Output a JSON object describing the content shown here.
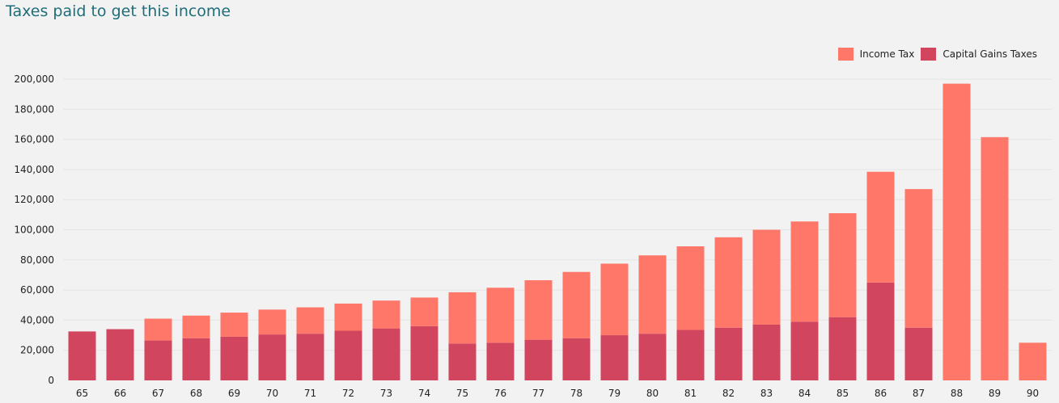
{
  "title": "Taxes paid to get this income",
  "colors": {
    "income_tax": "#ff7769",
    "capital_gains": "#d1465e",
    "grid": "#e4e4e4"
  },
  "chart_data": {
    "type": "bar",
    "stacked": true,
    "title": "Taxes paid to get this income",
    "xlabel": "",
    "ylabel": "",
    "ylim": [
      0,
      200000
    ],
    "yticks": [
      0,
      20000,
      40000,
      60000,
      80000,
      100000,
      120000,
      140000,
      160000,
      180000,
      200000
    ],
    "ytick_labels": [
      "0",
      "20,000",
      "40,000",
      "60,000",
      "80,000",
      "100,000",
      "120,000",
      "140,000",
      "160,000",
      "180,000",
      "200,000"
    ],
    "grid": true,
    "legend_position": "top-right",
    "categories": [
      "65",
      "66",
      "67",
      "68",
      "69",
      "70",
      "71",
      "72",
      "73",
      "74",
      "75",
      "76",
      "77",
      "78",
      "79",
      "80",
      "81",
      "82",
      "83",
      "84",
      "85",
      "86",
      "87",
      "88",
      "89",
      "90"
    ],
    "series": [
      {
        "name": "Capital Gains Taxes",
        "color": "#d1465e",
        "values": [
          32500,
          34000,
          26500,
          28000,
          29000,
          30500,
          31000,
          33000,
          34500,
          36000,
          24500,
          25000,
          27000,
          28000,
          30000,
          31000,
          33500,
          35000,
          37000,
          39000,
          42000,
          65000,
          35000,
          0,
          0,
          0
        ]
      },
      {
        "name": "Income Tax",
        "color": "#ff7769",
        "values": [
          0,
          0,
          14500,
          15000,
          16000,
          16500,
          17500,
          18000,
          18500,
          19000,
          34000,
          36500,
          39500,
          44000,
          47500,
          52000,
          55500,
          60000,
          63000,
          66500,
          69000,
          73500,
          92000,
          197000,
          161500,
          25000
        ]
      }
    ]
  }
}
